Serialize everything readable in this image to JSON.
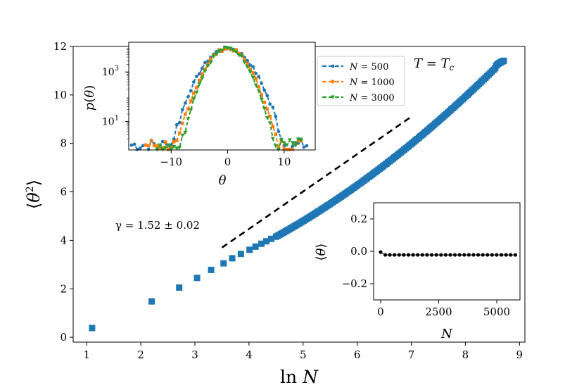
{
  "chart_data": [
    {
      "id": "main",
      "type": "scatter",
      "xlabel": "ln N",
      "ylabel": "⟨θ²⟩",
      "xlim": [
        0.75,
        9.1
      ],
      "ylim": [
        -0.2,
        12.0
      ],
      "xticks": [
        1,
        2,
        3,
        4,
        5,
        6,
        7,
        8,
        9
      ],
      "yticks": [
        0,
        2,
        4,
        6,
        8,
        10,
        12
      ],
      "annotations": [
        "T = T_c",
        "γ = 1.52 ± 0.02"
      ],
      "annotation_text": {
        "temperature": "T = T",
        "temperature_sub": "c",
        "gamma": "γ = 1.52 ± 0.02"
      },
      "series": [
        {
          "name": "⟨θ²⟩ data",
          "marker": "square",
          "color": "#1f77b4",
          "x": [
            1.1,
            2.2,
            2.71,
            3.04,
            3.3,
            3.53,
            3.69,
            3.85,
            4.01,
            4.12,
            4.23,
            4.32,
            4.41
          ],
          "y": [
            0.38,
            1.48,
            2.05,
            2.45,
            2.78,
            3.05,
            3.26,
            3.44,
            3.61,
            3.74,
            3.86,
            3.96,
            4.06
          ],
          "dense_segment": {
            "x_start": 4.5,
            "x_end": 8.55,
            "step": 0.03,
            "y_start": 4.15,
            "y_end": 11.1,
            "plateau_x": 8.72,
            "plateau_y": 11.42
          }
        },
        {
          "name": "power-law guide",
          "style": "dashed",
          "color": "#000000",
          "x": [
            3.5,
            7.0
          ],
          "y": [
            3.7,
            9.1
          ]
        }
      ]
    },
    {
      "id": "inset_distribution",
      "type": "line",
      "xlabel": "θ",
      "ylabel": "p(θ)",
      "yscale": "log",
      "xlim": [
        -17.5,
        15.5
      ],
      "ylim_log10": [
        -0.15,
        4.2
      ],
      "xticks": [
        -10,
        0,
        10
      ],
      "xtick_labels": [
        "−10",
        "0",
        "10"
      ],
      "yticks_log10": [
        1,
        3
      ],
      "ytick_labels": [
        {
          "base": "10",
          "exp": "1"
        },
        {
          "base": "10",
          "exp": "3"
        }
      ],
      "legend": {
        "location": "outside-right-top"
      },
      "series": [
        {
          "name": "N = 500",
          "legend_lhs": "N",
          "legend_rhs": " = 500",
          "marker": "circle",
          "color": "#1f77b4",
          "log10_peak": 3.95,
          "width": 7.5,
          "x_range": [
            -17,
            14
          ],
          "floor_log10": 0.05
        },
        {
          "name": "N = 1000",
          "legend_lhs": "N",
          "legend_rhs": " = 1000",
          "marker": "square",
          "color": "#ff7f0e",
          "log10_peak": 3.95,
          "width": 6.6,
          "x_range": [
            -14.5,
            13
          ],
          "floor_log10": 0.05
        },
        {
          "name": "N = 3000",
          "legend_lhs": "N",
          "legend_rhs": " = 3000",
          "marker": "triangle-down",
          "color": "#2ca02c",
          "log10_peak": 3.95,
          "width": 6.2,
          "x_range": [
            -12.5,
            13
          ],
          "floor_log10": 0.05
        }
      ]
    },
    {
      "id": "inset_mean",
      "type": "scatter",
      "xlabel": "N",
      "ylabel": "⟨θ⟩",
      "xlim": [
        -300,
        6000
      ],
      "ylim": [
        -0.3,
        0.3
      ],
      "xticks": [
        0,
        2500,
        5000
      ],
      "yticks": [
        -0.2,
        0.0,
        0.2
      ],
      "ytick_labels": [
        "−0.2",
        "0.0",
        "0.2"
      ],
      "series": [
        {
          "name": "⟨θ⟩",
          "marker": "circle",
          "color": "#000000",
          "x": [
            0,
            200,
            400,
            600,
            800,
            1000,
            1200,
            1400,
            1600,
            1800,
            2000,
            2200,
            2400,
            2600,
            2800,
            3000,
            3200,
            3400,
            3600,
            3800,
            4000,
            4200,
            4400,
            4600,
            4800,
            5000,
            5200,
            5400,
            5600,
            5800
          ],
          "y": [
            -0.005,
            -0.022,
            -0.022,
            -0.022,
            -0.022,
            -0.022,
            -0.022,
            -0.022,
            -0.022,
            -0.022,
            -0.022,
            -0.022,
            -0.022,
            -0.022,
            -0.022,
            -0.022,
            -0.022,
            -0.022,
            -0.022,
            -0.022,
            -0.022,
            -0.022,
            -0.022,
            -0.022,
            -0.022,
            -0.022,
            -0.022,
            -0.022,
            -0.022,
            -0.022
          ]
        }
      ]
    }
  ]
}
